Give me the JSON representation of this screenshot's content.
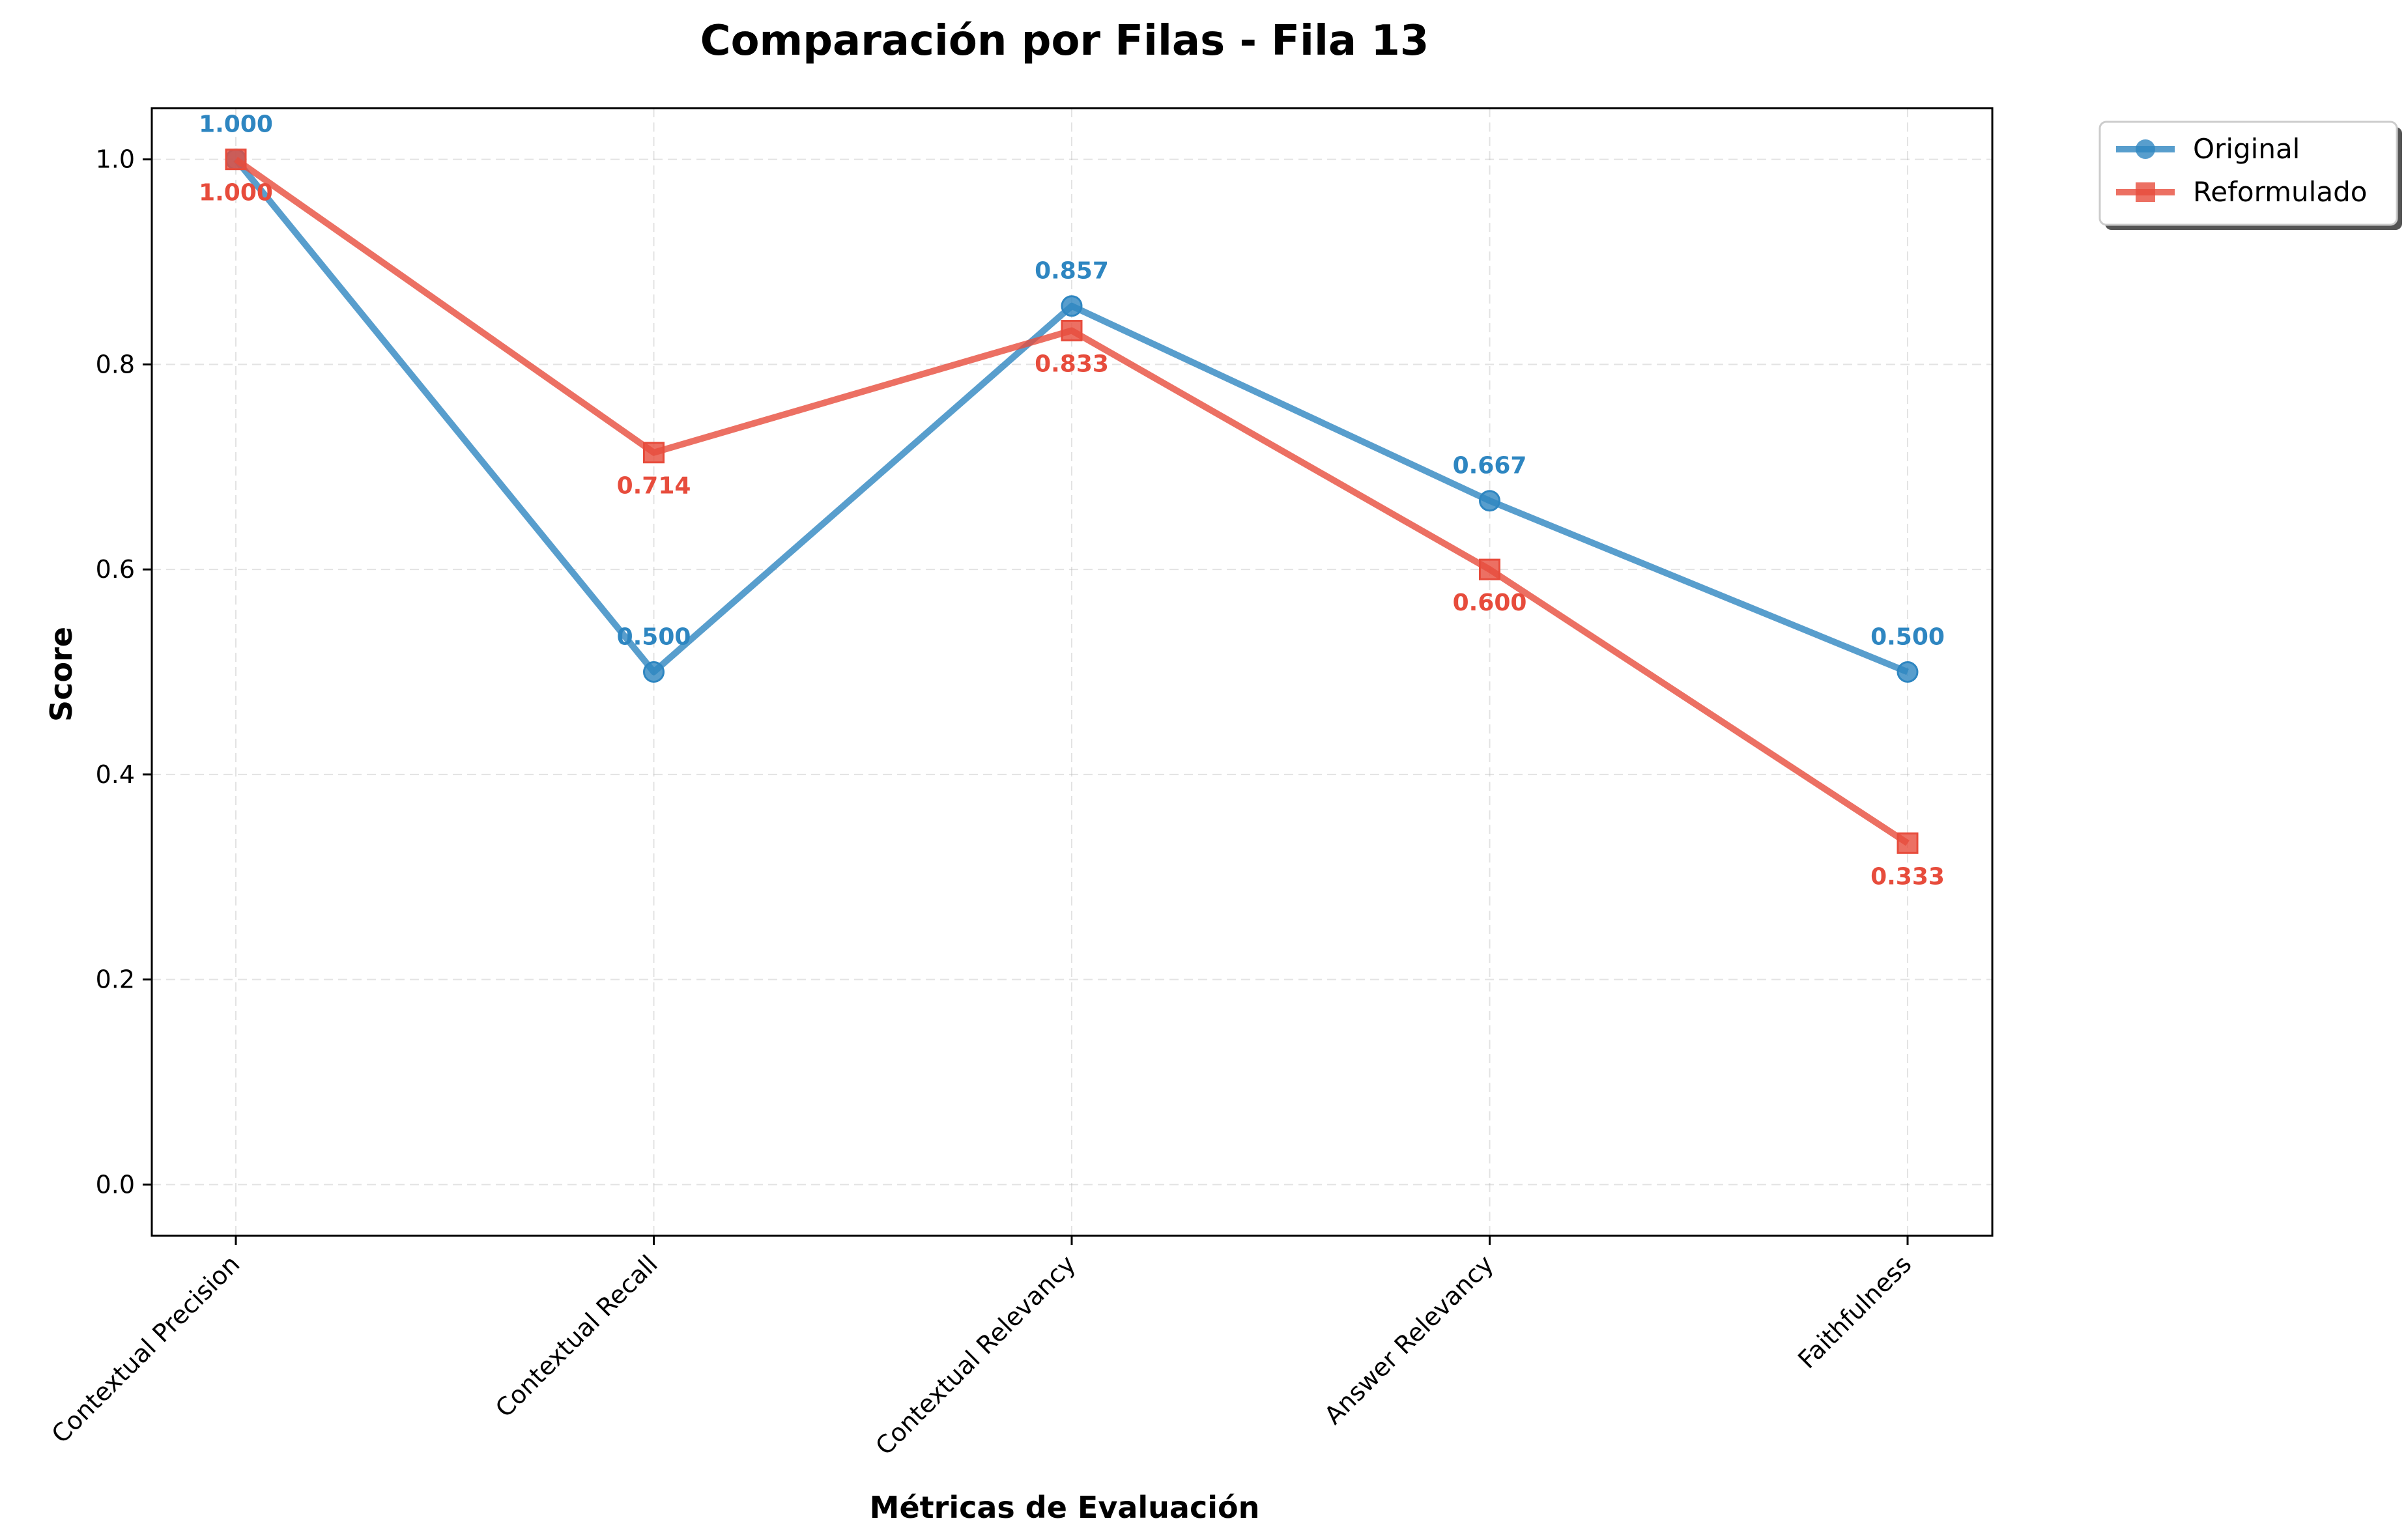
{
  "chart_data": {
    "type": "line",
    "title": "Comparación por Filas - Fila 13",
    "xlabel": "Métricas de Evaluación",
    "ylabel": "Score",
    "categories": [
      "Contextual Precision",
      "Contextual Recall",
      "Contextual Relevancy",
      "Answer Relevancy",
      "Faithfulness"
    ],
    "ylim": [
      -0.05,
      1.05
    ],
    "yticks": [
      0.0,
      0.2,
      0.4,
      0.6,
      0.8,
      1.0
    ],
    "ytick_labels": [
      "0.0",
      "0.2",
      "0.4",
      "0.6",
      "0.8",
      "1.0"
    ],
    "grid": true,
    "legend_position": "outside-top-right",
    "series": [
      {
        "name": "Original",
        "color": "#2e86c1",
        "marker": "circle",
        "values": [
          1.0,
          0.5,
          0.857,
          0.667,
          0.5
        ],
        "labels": [
          "1.000",
          "0.500",
          "0.857",
          "0.667",
          "0.500"
        ],
        "label_position": "above"
      },
      {
        "name": "Reformulado",
        "color": "#e74c3c",
        "marker": "square",
        "values": [
          1.0,
          0.714,
          0.833,
          0.6,
          0.333
        ],
        "labels": [
          "1.000",
          "0.714",
          "0.833",
          "0.600",
          "0.333"
        ],
        "label_position": "below"
      }
    ]
  }
}
